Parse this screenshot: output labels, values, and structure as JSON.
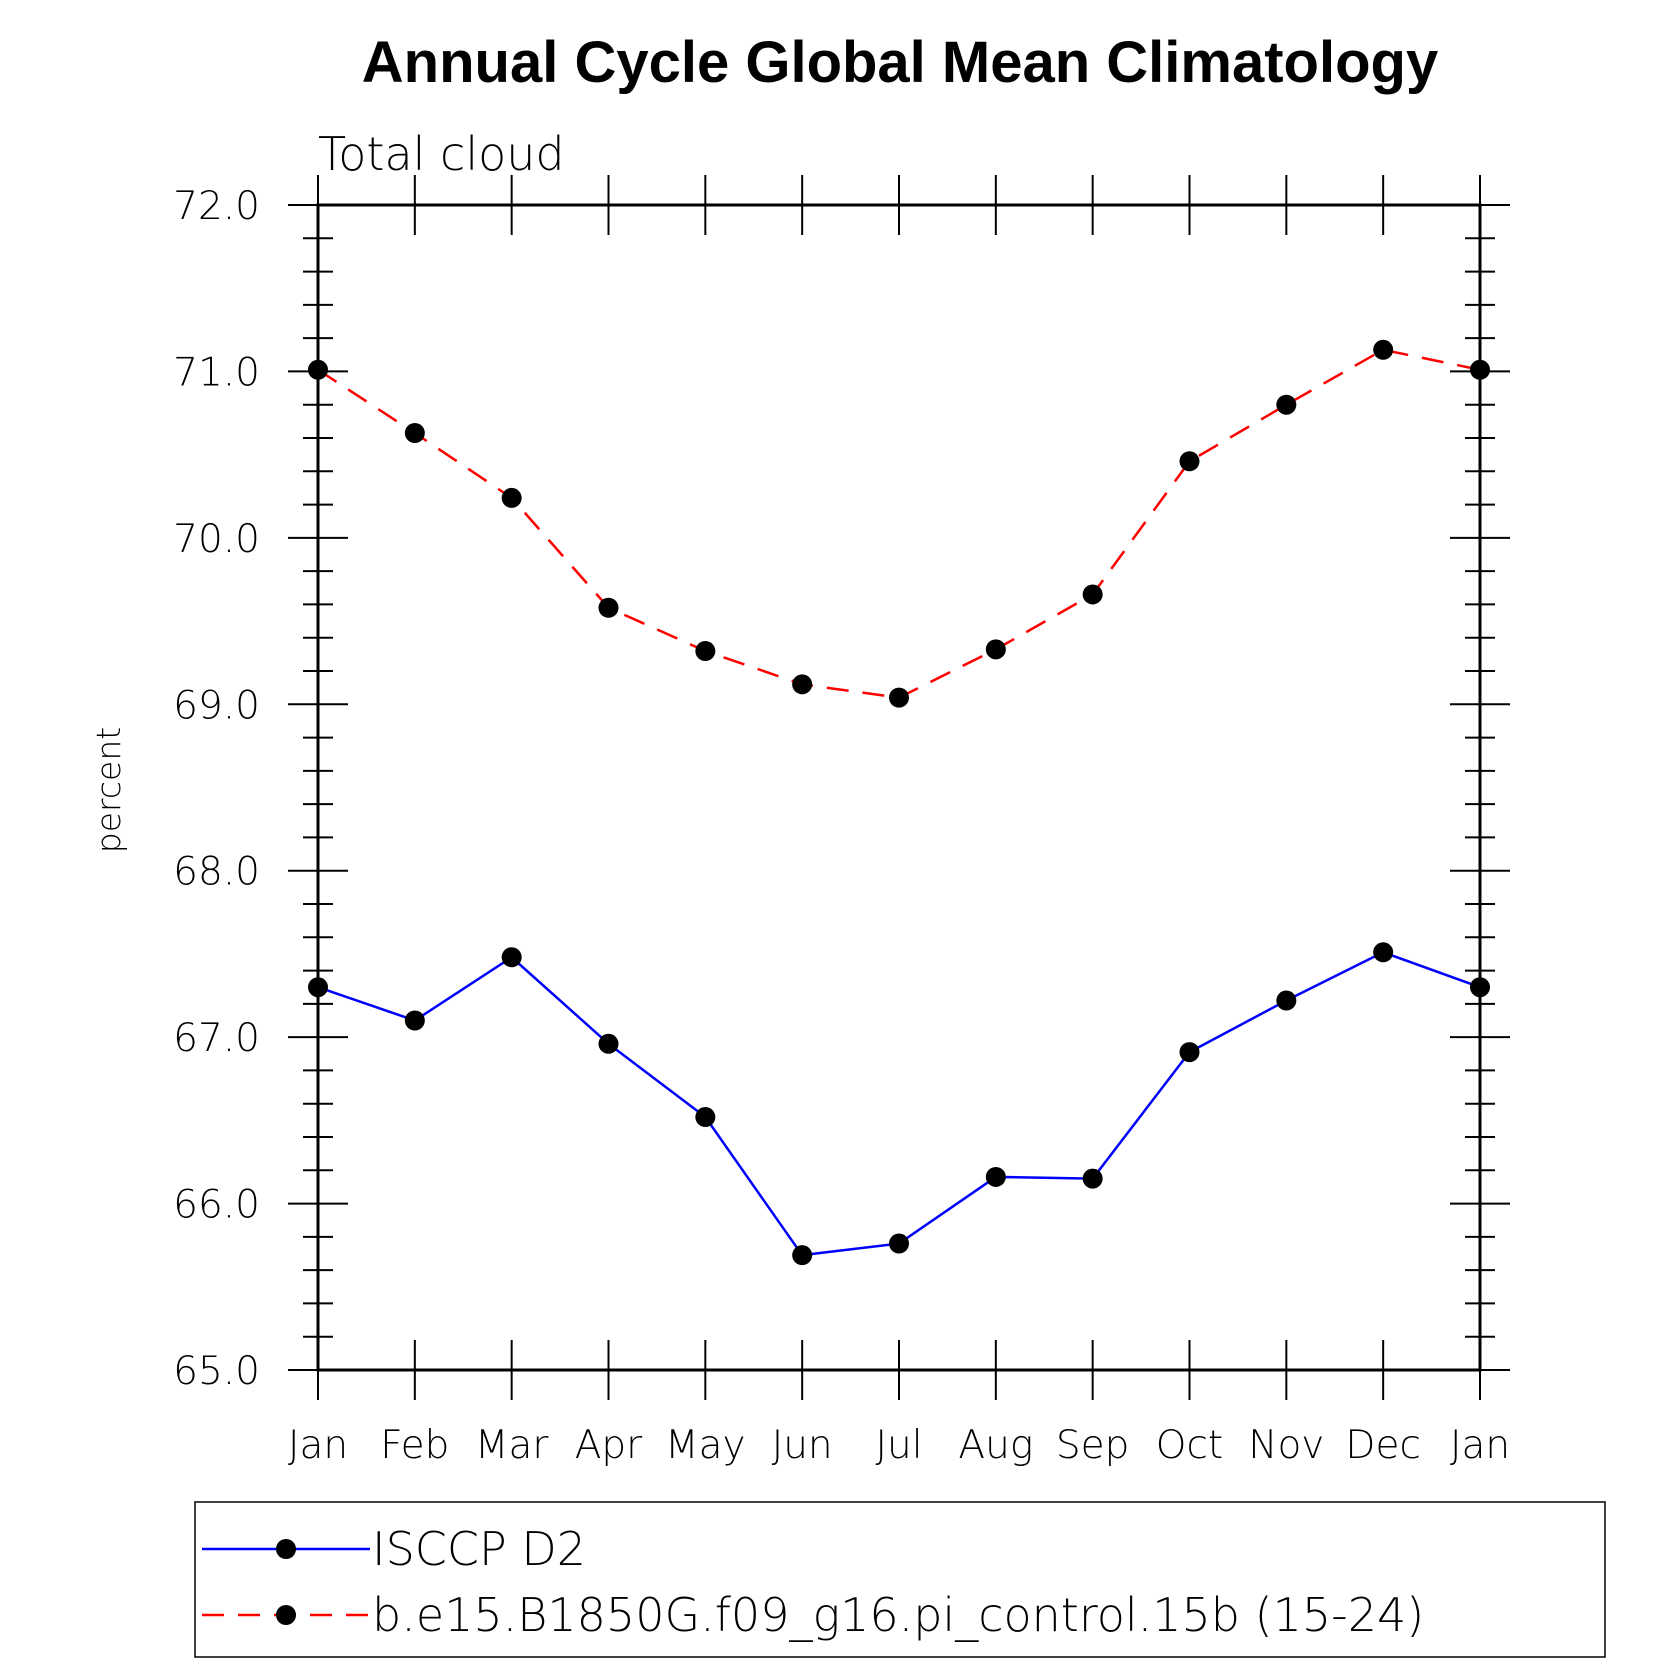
{
  "chart_data": {
    "type": "line",
    "title": "Annual Cycle Global Mean Climatology",
    "subtitle": "Total cloud",
    "xlabel": "",
    "ylabel": "percent",
    "categories": [
      "Jan",
      "Feb",
      "Mar",
      "Apr",
      "May",
      "Jun",
      "Jul",
      "Aug",
      "Sep",
      "Oct",
      "Nov",
      "Dec",
      "Jan"
    ],
    "ylim": [
      65.0,
      72.0
    ],
    "yticks": [
      "65.0",
      "66.0",
      "67.0",
      "68.0",
      "69.0",
      "70.0",
      "71.0",
      "72.0"
    ],
    "grid": false,
    "legend_position": "bottom",
    "series": [
      {
        "name": "ISCCP D2",
        "color": "#0000ff",
        "line_style": "solid",
        "marker": "filled-circle",
        "values": [
          67.3,
          67.1,
          67.48,
          66.96,
          66.52,
          65.69,
          65.76,
          66.16,
          66.15,
          66.91,
          67.22,
          67.51,
          67.3
        ]
      },
      {
        "name": "b.e15.B1850G.f09_g16.pi_control.15b (15-24)",
        "color": "#ff0000",
        "line_style": "dashed",
        "marker": "filled-circle",
        "values": [
          71.01,
          70.63,
          70.24,
          69.58,
          69.32,
          69.12,
          69.04,
          69.33,
          69.66,
          70.46,
          70.8,
          71.13,
          71.01
        ]
      }
    ]
  }
}
